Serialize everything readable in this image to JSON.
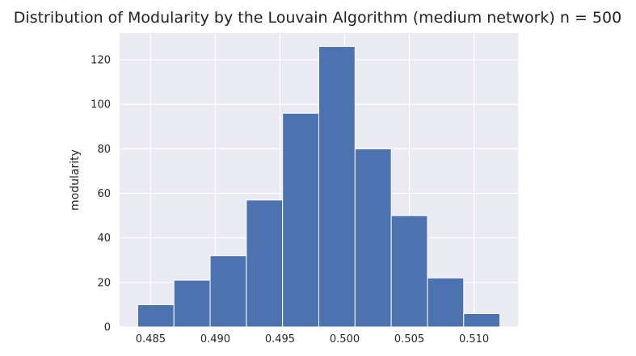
{
  "chart_data": {
    "type": "bar",
    "title": "Distribution of  Modularity by the Louvain Algorithm (medium network) n = 500",
    "xlabel": "",
    "ylabel": "modularity",
    "bin_edges": [
      0.484,
      0.4868,
      0.4896,
      0.4924,
      0.4952,
      0.498,
      0.5008,
      0.5036,
      0.5064,
      0.5092,
      0.512
    ],
    "values": [
      10,
      21,
      32,
      57,
      96,
      126,
      80,
      50,
      22,
      6
    ],
    "xlim": [
      0.4826,
      0.5134
    ],
    "ylim": [
      0,
      132
    ],
    "x_ticks": [
      0.485,
      0.49,
      0.495,
      0.5,
      0.505,
      0.51
    ],
    "x_tick_labels": [
      "0.485",
      "0.490",
      "0.495",
      "0.500",
      "0.505",
      "0.510"
    ],
    "y_ticks": [
      0,
      20,
      40,
      60,
      80,
      100,
      120
    ],
    "y_tick_labels": [
      "0",
      "20",
      "40",
      "60",
      "80",
      "100",
      "120"
    ],
    "grid": true,
    "legend": "none",
    "colors": {
      "bar": "#4c72b0",
      "background": "#eaeaf2",
      "grid": "#ffffff",
      "bar_edge": "#ffffff"
    }
  }
}
